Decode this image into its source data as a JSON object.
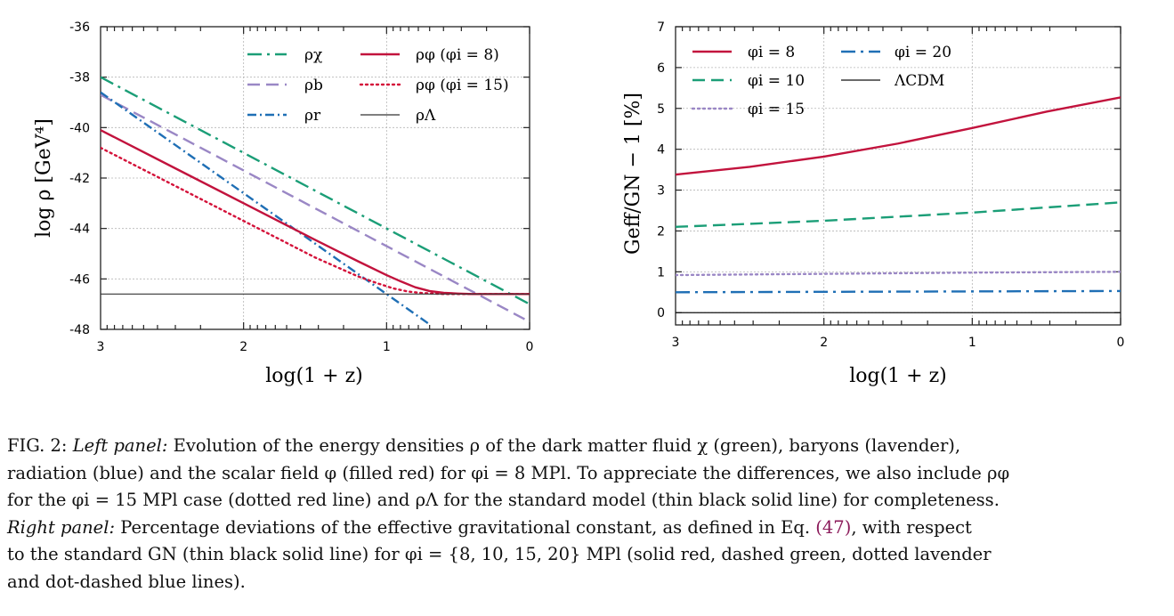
{
  "chart_data": [
    {
      "type": "line",
      "panel": "left",
      "xlabel": "log(1 + z)",
      "ylabel": "log ρ [GeV⁴]",
      "xlim": [
        3,
        0
      ],
      "ylim": [
        -48,
        -36
      ],
      "x_ticks": [
        "3",
        "2",
        "1",
        "0"
      ],
      "y_ticks": [
        "-36",
        "-38",
        "-40",
        "-42",
        "-44",
        "-46",
        "-48"
      ],
      "grid": true,
      "legend": "top-right, two columns",
      "series": [
        {
          "name": "ρχ",
          "color": "#1b9e77",
          "style": "dashdot",
          "x": [
            3,
            0
          ],
          "y": [
            -38.0,
            -47.0
          ]
        },
        {
          "name": "ρb",
          "color": "#9a87c5",
          "style": "dashed",
          "x": [
            3,
            0
          ],
          "y": [
            -38.7,
            -47.7
          ]
        },
        {
          "name": "ρr",
          "color": "#1f6fb5",
          "style": "dashdot-dense",
          "x": [
            3,
            0.7
          ],
          "y": [
            -38.6,
            -47.8
          ]
        },
        {
          "name": "ρφ (φi = 8)",
          "color": "#c2133d",
          "style": "solid",
          "x": [
            3.0,
            2.5,
            2.0,
            1.5,
            1.2,
            1.0,
            0.9,
            0.8,
            0.7,
            0.6,
            0.5,
            0.4,
            0.2,
            0.0
          ],
          "y": [
            -40.1,
            -41.55,
            -43.0,
            -44.45,
            -45.3,
            -45.85,
            -46.1,
            -46.33,
            -46.48,
            -46.55,
            -46.58,
            -46.6,
            -46.6,
            -46.6
          ]
        },
        {
          "name": "ρφ (φi = 15)",
          "color": "#d4123a",
          "style": "dotted",
          "x": [
            3.0,
            2.5,
            2.0,
            1.5,
            1.2,
            1.05,
            0.95,
            0.85,
            0.75,
            0.6,
            0.4,
            0.2,
            0.0
          ],
          "y": [
            -40.8,
            -42.25,
            -43.7,
            -45.15,
            -45.9,
            -46.2,
            -46.38,
            -46.5,
            -46.56,
            -46.6,
            -46.6,
            -46.6,
            -46.6
          ]
        },
        {
          "name": "ρΛ",
          "color": "#333333",
          "style": "thin",
          "x": [
            3,
            0
          ],
          "y": [
            -46.6,
            -46.6
          ]
        }
      ]
    },
    {
      "type": "line",
      "panel": "right",
      "xlabel": "log(1 + z)",
      "ylabel": "Geff/GN − 1 [%]",
      "xlim": [
        3,
        0
      ],
      "ylim": [
        -0.3,
        7
      ],
      "x_ticks": [
        "3",
        "2",
        "1",
        "0"
      ],
      "y_ticks": [
        "7",
        "6",
        "5",
        "4",
        "3",
        "2",
        "1",
        "0"
      ],
      "grid": true,
      "legend": "top, two columns",
      "series": [
        {
          "name": "φi = 8",
          "color": "#c2133d",
          "style": "solid",
          "x": [
            3.0,
            2.5,
            2.0,
            1.5,
            1.0,
            0.5,
            0.0
          ],
          "y": [
            3.38,
            3.57,
            3.82,
            4.14,
            4.52,
            4.92,
            5.27
          ]
        },
        {
          "name": "φi = 10",
          "color": "#1b9e77",
          "style": "dashed",
          "x": [
            3.0,
            2.0,
            1.0,
            0.0
          ],
          "y": [
            2.1,
            2.25,
            2.45,
            2.7
          ]
        },
        {
          "name": "φi = 15",
          "color": "#9a87c5",
          "style": "dotted",
          "x": [
            3.0,
            2.0,
            1.0,
            0.0
          ],
          "y": [
            0.92,
            0.95,
            0.98,
            1.0
          ]
        },
        {
          "name": "φi = 20",
          "color": "#1f6fb5",
          "style": "dashdot",
          "x": [
            3.0,
            2.0,
            1.0,
            0.0
          ],
          "y": [
            0.5,
            0.51,
            0.52,
            0.53
          ]
        },
        {
          "name": "ΛCDM",
          "color": "#111111",
          "style": "thin",
          "x": [
            3.0,
            0.0
          ],
          "y": [
            0.0,
            0.0
          ]
        }
      ]
    }
  ],
  "caption": {
    "label": "FIG. 2:",
    "left_panel_label": "Left panel:",
    "left_text_1": "Evolution of the energy densities ρ of the dark matter fluid χ (green), baryons (lavender),",
    "line_2": "radiation (blue) and the scalar field φ (filled red) for φi = 8 MPl. To appreciate the differences, we also include ρφ",
    "line_3": "for the φi = 15 MPl case (dotted red line) and ρΛ for the standard model (thin black solid line) for completeness.",
    "right_panel_label": "Right panel:",
    "right_text_1": "Percentage deviations of the effective gravitational constant, as defined in Eq.",
    "eq_ref": "(47)",
    "right_text_2": ", with respect",
    "line_5": "to the standard GN (thin black solid line) for φi = {8, 10, 15, 20} MPl (solid red, dashed green, dotted lavender",
    "line_6": "and dot-dashed blue lines)."
  }
}
